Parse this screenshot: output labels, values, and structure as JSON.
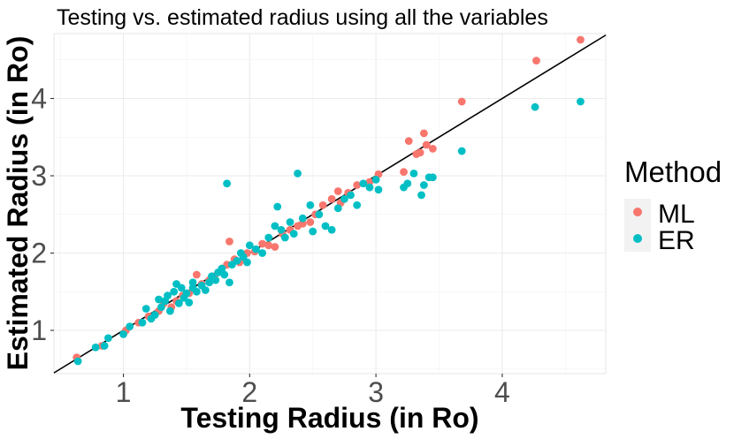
{
  "chart_data": {
    "type": "scatter",
    "title": "Testing vs. estimated radius using all the variables",
    "xlabel": "Testing Radius (in Ro)",
    "ylabel": "Estimated Radius (in Ro)",
    "xlim": [
      0.45,
      4.82
    ],
    "ylim": [
      0.44,
      4.84
    ],
    "x_ticks": [
      1,
      2,
      3,
      4
    ],
    "y_ticks": [
      1,
      2,
      3,
      4
    ],
    "grid": true,
    "legend": {
      "title": "Method",
      "position": "right"
    },
    "reference_line": {
      "slope": 1,
      "intercept": 0,
      "color": "#000000"
    },
    "series": [
      {
        "name": "ML",
        "color": "#F8766D",
        "points": [
          [
            0.63,
            0.65
          ],
          [
            0.83,
            0.8
          ],
          [
            1.02,
            1.0
          ],
          [
            1.12,
            1.1
          ],
          [
            1.2,
            1.18
          ],
          [
            1.28,
            1.25
          ],
          [
            1.32,
            1.35
          ],
          [
            1.38,
            1.3
          ],
          [
            1.42,
            1.38
          ],
          [
            1.47,
            1.45
          ],
          [
            1.52,
            1.48
          ],
          [
            1.58,
            1.72
          ],
          [
            1.62,
            1.6
          ],
          [
            1.68,
            1.65
          ],
          [
            1.72,
            1.7
          ],
          [
            1.78,
            1.8
          ],
          [
            1.82,
            1.85
          ],
          [
            1.84,
            2.15
          ],
          [
            1.88,
            1.92
          ],
          [
            1.92,
            1.88
          ],
          [
            1.98,
            2.0
          ],
          [
            2.04,
            2.02
          ],
          [
            2.1,
            2.12
          ],
          [
            2.15,
            2.1
          ],
          [
            2.2,
            2.08
          ],
          [
            2.26,
            2.25
          ],
          [
            2.32,
            2.3
          ],
          [
            2.38,
            2.35
          ],
          [
            2.42,
            2.38
          ],
          [
            2.48,
            2.4
          ],
          [
            2.52,
            2.5
          ],
          [
            2.58,
            2.62
          ],
          [
            2.65,
            2.7
          ],
          [
            2.72,
            2.65
          ],
          [
            2.78,
            2.78
          ],
          [
            2.85,
            2.88
          ],
          [
            2.95,
            2.92
          ],
          [
            3.02,
            3.02
          ],
          [
            3.22,
            3.05
          ],
          [
            3.26,
            3.45
          ],
          [
            3.32,
            3.28
          ],
          [
            3.38,
            3.55
          ],
          [
            3.4,
            3.4
          ],
          [
            3.45,
            3.35
          ],
          [
            3.68,
            3.96
          ],
          [
            4.27,
            4.49
          ],
          [
            4.62,
            4.76
          ],
          [
            2.7,
            2.8
          ],
          [
            3.35,
            3.3
          ]
        ]
      },
      {
        "name": "ER",
        "color": "#00BFC4",
        "points": [
          [
            0.64,
            0.6
          ],
          [
            0.78,
            0.78
          ],
          [
            0.85,
            0.8
          ],
          [
            0.88,
            0.9
          ],
          [
            1.0,
            0.95
          ],
          [
            1.05,
            1.05
          ],
          [
            1.15,
            1.1
          ],
          [
            1.18,
            1.28
          ],
          [
            1.22,
            1.15
          ],
          [
            1.25,
            1.2
          ],
          [
            1.28,
            1.4
          ],
          [
            1.3,
            1.3
          ],
          [
            1.33,
            1.38
          ],
          [
            1.35,
            1.45
          ],
          [
            1.37,
            1.25
          ],
          [
            1.4,
            1.5
          ],
          [
            1.42,
            1.6
          ],
          [
            1.44,
            1.35
          ],
          [
            1.46,
            1.55
          ],
          [
            1.48,
            1.42
          ],
          [
            1.5,
            1.48
          ],
          [
            1.52,
            1.36
          ],
          [
            1.55,
            1.55
          ],
          [
            1.58,
            1.5
          ],
          [
            1.62,
            1.58
          ],
          [
            1.65,
            1.52
          ],
          [
            1.7,
            1.7
          ],
          [
            1.73,
            1.65
          ],
          [
            1.75,
            1.75
          ],
          [
            1.78,
            1.8
          ],
          [
            1.8,
            1.72
          ],
          [
            1.82,
            2.9
          ],
          [
            1.84,
            1.62
          ],
          [
            1.86,
            1.85
          ],
          [
            1.9,
            1.9
          ],
          [
            1.93,
            2.0
          ],
          [
            1.95,
            1.95
          ],
          [
            1.98,
            1.88
          ],
          [
            2.0,
            2.1
          ],
          [
            2.05,
            2.05
          ],
          [
            2.1,
            2.0
          ],
          [
            2.15,
            2.2
          ],
          [
            2.2,
            2.35
          ],
          [
            2.22,
            2.6
          ],
          [
            2.25,
            2.3
          ],
          [
            2.28,
            2.2
          ],
          [
            2.32,
            2.4
          ],
          [
            2.35,
            2.25
          ],
          [
            2.38,
            3.03
          ],
          [
            2.42,
            2.45
          ],
          [
            2.48,
            2.62
          ],
          [
            2.5,
            2.28
          ],
          [
            2.55,
            2.5
          ],
          [
            2.6,
            2.35
          ],
          [
            2.65,
            2.3
          ],
          [
            2.7,
            2.58
          ],
          [
            2.75,
            2.7
          ],
          [
            2.8,
            2.75
          ],
          [
            2.85,
            2.62
          ],
          [
            2.9,
            2.9
          ],
          [
            2.95,
            2.85
          ],
          [
            3.0,
            2.95
          ],
          [
            3.02,
            2.82
          ],
          [
            3.22,
            2.85
          ],
          [
            3.25,
            2.9
          ],
          [
            3.3,
            3.03
          ],
          [
            3.36,
            2.75
          ],
          [
            3.38,
            2.88
          ],
          [
            3.42,
            2.98
          ],
          [
            3.45,
            2.98
          ],
          [
            3.68,
            3.32
          ],
          [
            4.26,
            3.89
          ],
          [
            4.62,
            3.96
          ],
          [
            1.55,
            1.62
          ],
          [
            1.68,
            1.62
          ]
        ]
      }
    ]
  }
}
